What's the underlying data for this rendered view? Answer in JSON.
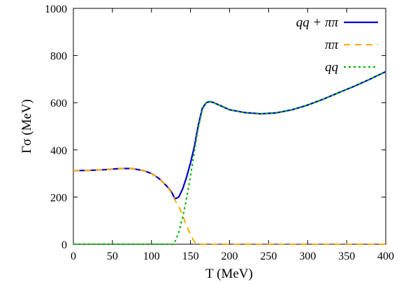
{
  "chart_data": {
    "type": "line",
    "xlabel": "T (MeV)",
    "ylabel": "Γσ (MeV)",
    "xlim": [
      0,
      400
    ],
    "ylim": [
      0,
      1000
    ],
    "xticks": [
      "0",
      "50",
      "100",
      "150",
      "200",
      "250",
      "300",
      "350",
      "400"
    ],
    "yticks": [
      "0",
      "200",
      "400",
      "600",
      "800",
      "1000"
    ],
    "grid": false,
    "legend_position": "top-right",
    "series": [
      {
        "name": "qq + ππ",
        "color": "#0000cc",
        "style": "solid",
        "x": [
          0,
          20,
          40,
          60,
          75,
          90,
          100,
          110,
          120,
          126,
          130,
          135,
          140,
          145,
          150,
          155,
          160,
          165,
          170,
          175,
          180,
          190,
          200,
          220,
          240,
          260,
          280,
          300,
          320,
          340,
          360,
          380,
          400
        ],
        "y": [
          312,
          313,
          316,
          321,
          321,
          312,
          300,
          278,
          245,
          220,
          192,
          200,
          235,
          285,
          345,
          415,
          505,
          575,
          600,
          605,
          600,
          585,
          570,
          558,
          553,
          557,
          570,
          590,
          615,
          643,
          670,
          700,
          732
        ]
      },
      {
        "name": "ππ",
        "color": "#ffaa00",
        "style": "dashed",
        "x": [
          0,
          20,
          40,
          60,
          75,
          90,
          100,
          110,
          120,
          126,
          130,
          135,
          140,
          145,
          150,
          155,
          160,
          170,
          200,
          250,
          300,
          350,
          400
        ],
        "y": [
          312,
          313,
          316,
          321,
          321,
          312,
          300,
          278,
          245,
          215,
          188,
          160,
          120,
          80,
          40,
          10,
          0,
          0,
          0,
          0,
          0,
          0,
          0
        ]
      },
      {
        "name": "qq",
        "color": "#00bb00",
        "style": "dotted",
        "x": [
          0,
          50,
          100,
          128,
          130,
          135,
          140,
          145,
          150,
          155,
          160,
          165,
          170,
          175,
          180,
          190,
          200,
          220,
          240,
          260,
          280,
          300,
          320,
          340,
          360,
          380,
          400
        ],
        "y": [
          0,
          0,
          0,
          0,
          10,
          50,
          115,
          195,
          290,
          395,
          495,
          570,
          600,
          605,
          600,
          585,
          570,
          558,
          553,
          557,
          570,
          590,
          615,
          643,
          670,
          700,
          732
        ]
      }
    ]
  }
}
